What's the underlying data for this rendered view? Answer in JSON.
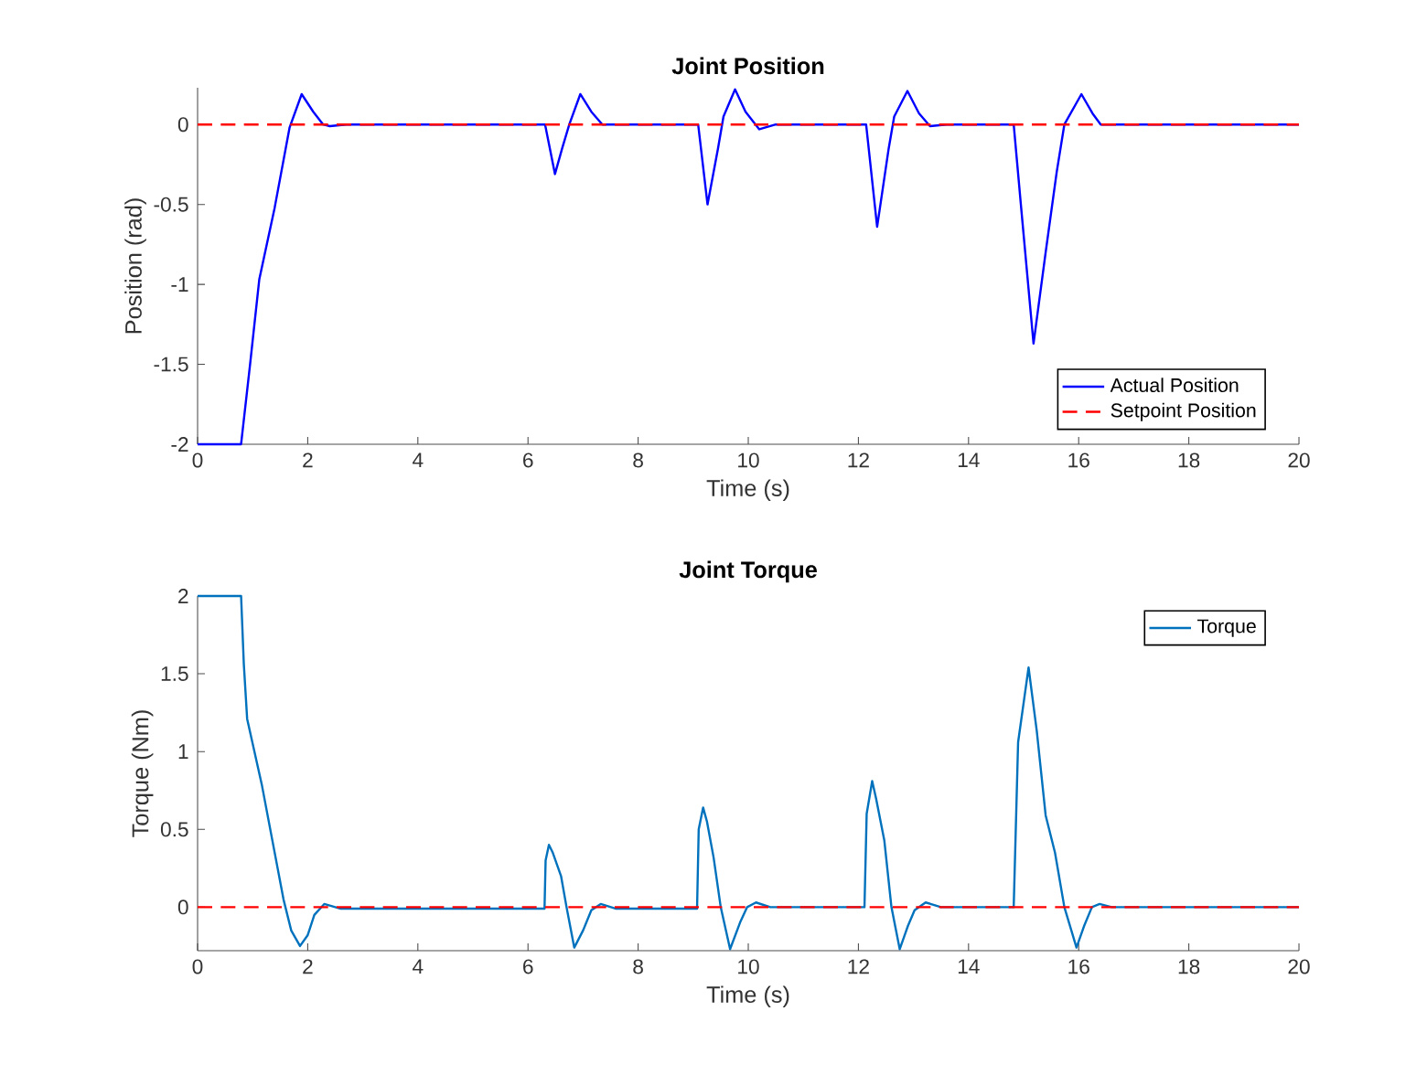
{
  "chart_data": [
    {
      "type": "line",
      "title": "Joint Position",
      "xlabel": "Time (s)",
      "ylabel": "Position (rad)",
      "xlim": [
        0,
        20
      ],
      "ylim": [
        -2,
        0.23
      ],
      "xticks": [
        0,
        2,
        4,
        6,
        8,
        10,
        12,
        14,
        16,
        18,
        20
      ],
      "yticks": [
        -2,
        -1.5,
        -1,
        -0.5,
        0
      ],
      "legend": "bottom right",
      "series": [
        {
          "name": "Actual Position",
          "color": "#0000ff",
          "x": [
            0,
            0.79,
            0.95,
            1.12,
            1.4,
            1.67,
            1.89,
            2.1,
            2.28,
            2.4,
            2.7,
            6.31,
            6.49,
            6.62,
            6.75,
            6.95,
            7.15,
            7.35,
            9.09,
            9.26,
            9.45,
            9.55,
            9.76,
            9.95,
            10.2,
            10.5,
            12.14,
            12.34,
            12.55,
            12.65,
            12.89,
            13.1,
            13.3,
            13.6,
            14.82,
            14.95,
            15.18,
            15.4,
            15.6,
            15.74,
            16.05,
            16.25,
            16.4,
            20
          ],
          "values": [
            -2,
            -2,
            -1.51,
            -0.97,
            -0.52,
            -0.02,
            0.19,
            0.08,
            0,
            -0.01,
            0,
            0,
            -0.31,
            -0.15,
            0,
            0.19,
            0.08,
            0,
            0,
            -0.5,
            -0.15,
            0.05,
            0.22,
            0.08,
            -0.03,
            0,
            0,
            -0.64,
            -0.15,
            0.05,
            0.21,
            0.07,
            -0.01,
            0,
            0,
            -0.5,
            -1.37,
            -0.8,
            -0.3,
            0,
            0.19,
            0.07,
            0,
            0
          ]
        },
        {
          "name": "Setpoint Position",
          "color": "#ff0000",
          "line_style": "dashed",
          "x": [
            0,
            20
          ],
          "values": [
            0,
            0
          ]
        }
      ]
    },
    {
      "type": "line",
      "title": "Joint Torque",
      "xlabel": "Time (s)",
      "ylabel": "Torque (Nm)",
      "xlim": [
        0,
        20
      ],
      "ylim": [
        -0.28,
        2
      ],
      "xticks": [
        0,
        2,
        4,
        6,
        8,
        10,
        12,
        14,
        16,
        18,
        20
      ],
      "yticks": [
        0,
        0.5,
        1,
        1.5,
        2
      ],
      "legend": "top right",
      "series": [
        {
          "name": "Torque",
          "color": "#0072bd",
          "x": [
            0,
            0.79,
            0.84,
            0.9,
            1.17,
            1.56,
            1.7,
            1.86,
            2.0,
            2.12,
            2.3,
            2.6,
            6.3,
            6.32,
            6.38,
            6.45,
            6.6,
            6.7,
            6.84,
            7.0,
            7.15,
            7.32,
            7.6,
            9.07,
            9.1,
            9.18,
            9.25,
            9.37,
            9.5,
            9.67,
            9.85,
            9.98,
            10.14,
            10.4,
            12.11,
            12.15,
            12.25,
            12.32,
            12.47,
            12.6,
            12.75,
            12.9,
            13.02,
            13.22,
            13.5,
            14.82,
            14.9,
            15.09,
            15.24,
            15.4,
            15.57,
            15.74,
            15.96,
            16.1,
            16.24,
            16.38,
            16.6,
            20
          ],
          "values": [
            2,
            2,
            1.56,
            1.21,
            0.78,
            0.05,
            -0.15,
            -0.25,
            -0.18,
            -0.05,
            0.02,
            -0.01,
            -0.01,
            0.3,
            0.4,
            0.35,
            0.2,
            0,
            -0.26,
            -0.15,
            -0.02,
            0.02,
            -0.01,
            -0.01,
            0.5,
            0.64,
            0.55,
            0.32,
            0,
            -0.27,
            -0.1,
            0,
            0.03,
            0,
            0,
            0.6,
            0.81,
            0.7,
            0.43,
            0,
            -0.27,
            -0.12,
            -0.02,
            0.03,
            0,
            0,
            1.06,
            1.54,
            1.13,
            0.59,
            0.35,
            0,
            -0.26,
            -0.12,
            0,
            0.02,
            0,
            0
          ]
        }
      ],
      "ref_lines": [
        {
          "axis": "y",
          "value": 0,
          "color": "#ff0000",
          "line_style": "dashed"
        }
      ]
    }
  ]
}
